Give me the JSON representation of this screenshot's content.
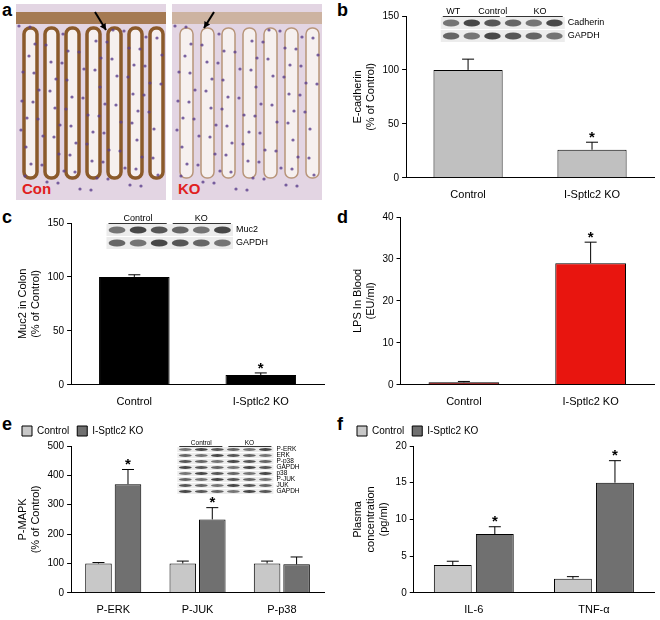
{
  "panel_a": {
    "panel_label": "a",
    "images": [
      "Con",
      "KO"
    ]
  },
  "chart_data": [
    {
      "panel_label": "b",
      "type": "bar",
      "categories": [
        "Control",
        "I-Sptlc2 KO"
      ],
      "values": [
        100,
        26
      ],
      "errors": [
        10,
        7
      ],
      "color": "#c0c0c0",
      "y_label": [
        "E-cadherin",
        "(% of Control)"
      ],
      "ylim": [
        0,
        150
      ],
      "yticks": [
        0,
        50,
        100,
        150
      ],
      "grid": false,
      "annotations": [
        {
          "text": "*",
          "category": "I-Sptlc2 KO"
        }
      ],
      "blot": {
        "headers": [
          "WT",
          "Control",
          "KO"
        ],
        "rows": [
          "Cadherin",
          "GAPDH"
        ]
      }
    },
    {
      "panel_label": "c",
      "type": "bar",
      "categories": [
        "Control",
        "I-Sptlc2 KO"
      ],
      "values": [
        100,
        9
      ],
      "errors": [
        2,
        2
      ],
      "color": "#000000",
      "y_label": [
        "Muc2 in Colon",
        "(% of Control)"
      ],
      "ylim": [
        0,
        150
      ],
      "yticks": [
        0,
        50,
        100,
        150
      ],
      "grid": false,
      "annotations": [
        {
          "text": "*",
          "category": "I-Sptlc2 KO"
        }
      ],
      "blot": {
        "headers": [
          "Control",
          "KO"
        ],
        "rows": [
          "Muc2",
          "GAPDH"
        ]
      }
    },
    {
      "panel_label": "d",
      "type": "bar",
      "categories": [
        "Control",
        "I-Sptlc2 KO"
      ],
      "values": [
        0.6,
        29
      ],
      "errors": [
        0.2,
        5
      ],
      "colors": [
        "#8b0000",
        "#e8150f"
      ],
      "y_label": [
        "LPS In Blood",
        "(EU/ml)"
      ],
      "ylim": [
        0,
        40
      ],
      "yticks": [
        0,
        10,
        20,
        30,
        40
      ],
      "grid": false,
      "annotations": [
        {
          "text": "*",
          "category": "I-Sptlc2 KO"
        }
      ]
    },
    {
      "panel_label": "e",
      "type": "bar",
      "categories": [
        "P-ERK",
        "P-JUK",
        "P-p38"
      ],
      "series": [
        {
          "name": "Control",
          "color": "#c8c8c8",
          "values": [
            100,
            100,
            100
          ],
          "errors": [
            3,
            8,
            8
          ]
        },
        {
          "name": "I-Sptlc2 KO",
          "color": "#707070",
          "values": [
            370,
            250,
            97
          ],
          "errors": [
            50,
            40,
            25
          ]
        }
      ],
      "y_label": [
        "P-MAPK",
        "(% of Control)"
      ],
      "ylim": [
        0,
        500
      ],
      "yticks": [
        0,
        100,
        200,
        300,
        400,
        500
      ],
      "grid": false,
      "legend": "top-left",
      "annotations": [
        {
          "text": "*",
          "series": "I-Sptlc2 KO",
          "category": "P-ERK"
        },
        {
          "text": "*",
          "series": "I-Sptlc2 KO",
          "category": "P-JUK"
        }
      ],
      "blot": {
        "headers": [
          "Control",
          "KO"
        ],
        "rows": [
          "P-ERK",
          "ERK",
          "P-p38",
          "GAPDH",
          "p38",
          "P-JUK",
          "JUK",
          "GAPDH"
        ]
      }
    },
    {
      "panel_label": "f",
      "type": "bar",
      "categories": [
        "IL-6",
        "TNF-α"
      ],
      "series": [
        {
          "name": "Control",
          "color": "#c8c8c8",
          "values": [
            3.8,
            1.9
          ],
          "errors": [
            0.5,
            0.3
          ]
        },
        {
          "name": "I-Sptlc2 KO",
          "color": "#707070",
          "values": [
            8,
            15
          ],
          "errors": [
            1,
            3
          ]
        }
      ],
      "y_label": [
        "Plasma",
        "concentration",
        "(pg/ml)"
      ],
      "ylim": [
        0,
        20
      ],
      "yticks": [
        0,
        5,
        10,
        15,
        20
      ],
      "grid": false,
      "legend": "top-left",
      "annotations": [
        {
          "text": "*",
          "series": "I-Sptlc2 KO",
          "category": "IL-6"
        },
        {
          "text": "*",
          "series": "I-Sptlc2 KO",
          "category": "TNF-α"
        }
      ]
    }
  ]
}
